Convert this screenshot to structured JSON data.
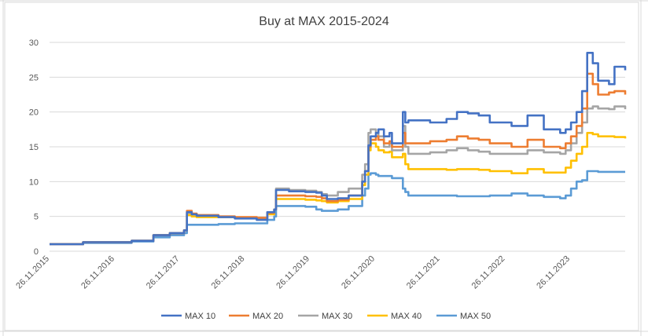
{
  "chart_data": {
    "type": "line",
    "title": "Buy at MAX 2015-2024",
    "xlabel": "",
    "ylabel": "",
    "ylim": [
      0,
      30
    ],
    "yticks": [
      0,
      5,
      10,
      15,
      20,
      25,
      30
    ],
    "x_start": "26.11.2015",
    "x_end": "30.09.2024",
    "xticks": [
      "26.11.2015",
      "26.11.2016",
      "26.11.2017",
      "26.11.2018",
      "26.11.2019",
      "26.11.2020",
      "26.11.2021",
      "26.11.2022",
      "26.11.2023"
    ],
    "grid": "horizontal",
    "legend_position": "bottom",
    "series": [
      {
        "name": "MAX 10",
        "color": "#4472c4",
        "points": [
          [
            "26.11.2015",
            1.0
          ],
          [
            "01.04.2016",
            1.0
          ],
          [
            "01.06.2016",
            1.3
          ],
          [
            "01.03.2017",
            1.5
          ],
          [
            "01.07.2017",
            2.3
          ],
          [
            "01.10.2017",
            2.6
          ],
          [
            "20.12.2017",
            3.0
          ],
          [
            "05.01.2018",
            5.6
          ],
          [
            "01.02.2018",
            5.3
          ],
          [
            "01.03.2018",
            5.1
          ],
          [
            "01.07.2018",
            4.9
          ],
          [
            "01.10.2018",
            4.7
          ],
          [
            "01.02.2019",
            4.5
          ],
          [
            "01.04.2019",
            5.6
          ],
          [
            "10.05.2019",
            6.0
          ],
          [
            "20.05.2019",
            8.8
          ],
          [
            "01.08.2019",
            8.6
          ],
          [
            "01.11.2019",
            8.5
          ],
          [
            "01.01.2020",
            8.4
          ],
          [
            "01.02.2020",
            8.0
          ],
          [
            "01.03.2020",
            7.5
          ],
          [
            "01.05.2020",
            7.6
          ],
          [
            "01.07.2020",
            8.0
          ],
          [
            "15.09.2020",
            10.0
          ],
          [
            "01.10.2020",
            11.5
          ],
          [
            "20.10.2020",
            15.2
          ],
          [
            "01.11.2020",
            16.5
          ],
          [
            "01.12.2020",
            17.0
          ],
          [
            "15.12.2020",
            17.5
          ],
          [
            "15.01.2021",
            16.5
          ],
          [
            "15.02.2021",
            17.0
          ],
          [
            "01.03.2021",
            15.5
          ],
          [
            "01.05.2021",
            20.0
          ],
          [
            "15.05.2021",
            18.5
          ],
          [
            "01.06.2021",
            18.8
          ],
          [
            "01.10.2021",
            18.5
          ],
          [
            "01.01.2022",
            19.0
          ],
          [
            "01.03.2022",
            20.0
          ],
          [
            "01.05.2022",
            19.8
          ],
          [
            "01.07.2022",
            19.5
          ],
          [
            "01.09.2022",
            18.5
          ],
          [
            "01.01.2023",
            18.0
          ],
          [
            "01.04.2023",
            19.5
          ],
          [
            "01.07.2023",
            17.5
          ],
          [
            "01.10.2023",
            17.0
          ],
          [
            "01.11.2023",
            17.5
          ],
          [
            "01.12.2023",
            18.5
          ],
          [
            "01.01.2024",
            20.0
          ],
          [
            "01.02.2024",
            23.0
          ],
          [
            "01.03.2024",
            28.5
          ],
          [
            "01.04.2024",
            27.0
          ],
          [
            "01.05.2024",
            24.5
          ],
          [
            "01.07.2024",
            24.0
          ],
          [
            "01.08.2024",
            26.5
          ],
          [
            "30.09.2024",
            26.0
          ]
        ]
      },
      {
        "name": "MAX 20",
        "color": "#ed7d31",
        "points": [
          [
            "26.11.2015",
            1.0
          ],
          [
            "01.04.2016",
            1.0
          ],
          [
            "01.06.2016",
            1.3
          ],
          [
            "01.03.2017",
            1.5
          ],
          [
            "01.07.2017",
            2.3
          ],
          [
            "01.10.2017",
            2.6
          ],
          [
            "20.12.2017",
            3.0
          ],
          [
            "05.01.2018",
            5.8
          ],
          [
            "01.02.2018",
            5.4
          ],
          [
            "01.03.2018",
            5.2
          ],
          [
            "01.07.2018",
            5.0
          ],
          [
            "01.10.2018",
            4.9
          ],
          [
            "01.02.2019",
            4.8
          ],
          [
            "01.04.2019",
            5.5
          ],
          [
            "10.05.2019",
            6.0
          ],
          [
            "20.05.2019",
            8.0
          ],
          [
            "01.08.2019",
            8.0
          ],
          [
            "01.11.2019",
            7.9
          ],
          [
            "01.01.2020",
            7.8
          ],
          [
            "01.02.2020",
            7.6
          ],
          [
            "01.03.2020",
            7.2
          ],
          [
            "01.05.2020",
            7.4
          ],
          [
            "01.07.2020",
            8.0
          ],
          [
            "15.09.2020",
            10.0
          ],
          [
            "01.10.2020",
            11.5
          ],
          [
            "20.10.2020",
            15.0
          ],
          [
            "01.11.2020",
            16.0
          ],
          [
            "01.12.2020",
            16.5
          ],
          [
            "15.12.2020",
            16.0
          ],
          [
            "15.01.2021",
            15.5
          ],
          [
            "15.02.2021",
            15.8
          ],
          [
            "01.03.2021",
            15.0
          ],
          [
            "01.05.2021",
            17.0
          ],
          [
            "15.05.2021",
            15.5
          ],
          [
            "01.06.2021",
            15.5
          ],
          [
            "01.10.2021",
            15.8
          ],
          [
            "01.01.2022",
            16.0
          ],
          [
            "01.03.2022",
            16.5
          ],
          [
            "01.05.2022",
            16.2
          ],
          [
            "01.07.2022",
            16.0
          ],
          [
            "01.09.2022",
            15.5
          ],
          [
            "01.01.2023",
            15.0
          ],
          [
            "01.04.2023",
            16.0
          ],
          [
            "01.07.2023",
            15.0
          ],
          [
            "01.10.2023",
            14.8
          ],
          [
            "01.11.2023",
            15.5
          ],
          [
            "01.12.2023",
            16.5
          ],
          [
            "01.01.2024",
            18.0
          ],
          [
            "01.02.2024",
            20.5
          ],
          [
            "01.03.2024",
            25.5
          ],
          [
            "01.04.2024",
            24.0
          ],
          [
            "01.05.2024",
            22.5
          ],
          [
            "01.07.2024",
            22.8
          ],
          [
            "01.08.2024",
            23.0
          ],
          [
            "30.09.2024",
            22.5
          ]
        ]
      },
      {
        "name": "MAX 30",
        "color": "#a5a5a5",
        "points": [
          [
            "26.11.2015",
            1.0
          ],
          [
            "01.04.2016",
            1.0
          ],
          [
            "01.06.2016",
            1.3
          ],
          [
            "01.03.2017",
            1.5
          ],
          [
            "01.07.2017",
            2.3
          ],
          [
            "01.10.2017",
            2.6
          ],
          [
            "20.12.2017",
            3.0
          ],
          [
            "05.01.2018",
            5.5
          ],
          [
            "01.02.2018",
            5.3
          ],
          [
            "01.03.2018",
            5.1
          ],
          [
            "01.07.2018",
            5.0
          ],
          [
            "01.10.2018",
            4.8
          ],
          [
            "01.02.2019",
            4.7
          ],
          [
            "01.04.2019",
            5.6
          ],
          [
            "10.05.2019",
            6.0
          ],
          [
            "20.05.2019",
            9.0
          ],
          [
            "01.08.2019",
            8.8
          ],
          [
            "01.11.2019",
            8.7
          ],
          [
            "01.01.2020",
            8.5
          ],
          [
            "01.02.2020",
            8.2
          ],
          [
            "01.03.2020",
            8.0
          ],
          [
            "01.05.2020",
            8.5
          ],
          [
            "01.07.2020",
            9.0
          ],
          [
            "15.09.2020",
            11.0
          ],
          [
            "01.10.2020",
            12.5
          ],
          [
            "20.10.2020",
            17.0
          ],
          [
            "01.11.2020",
            17.5
          ],
          [
            "01.12.2020",
            17.0
          ],
          [
            "15.12.2020",
            16.5
          ],
          [
            "15.01.2021",
            15.0
          ],
          [
            "15.02.2021",
            15.5
          ],
          [
            "01.03.2021",
            14.5
          ],
          [
            "01.05.2021",
            18.0
          ],
          [
            "15.05.2021",
            15.0
          ],
          [
            "01.06.2021",
            14.0
          ],
          [
            "01.10.2021",
            14.2
          ],
          [
            "01.01.2022",
            14.5
          ],
          [
            "01.03.2022",
            14.8
          ],
          [
            "01.05.2022",
            14.5
          ],
          [
            "01.07.2022",
            14.3
          ],
          [
            "01.09.2022",
            14.0
          ],
          [
            "01.01.2023",
            14.0
          ],
          [
            "01.04.2023",
            14.5
          ],
          [
            "01.07.2023",
            14.2
          ],
          [
            "01.10.2023",
            14.0
          ],
          [
            "01.11.2023",
            14.5
          ],
          [
            "01.12.2023",
            15.5
          ],
          [
            "01.01.2024",
            17.0
          ],
          [
            "01.02.2024",
            18.5
          ],
          [
            "01.03.2024",
            20.5
          ],
          [
            "01.04.2024",
            20.8
          ],
          [
            "01.05.2024",
            20.5
          ],
          [
            "01.07.2024",
            20.4
          ],
          [
            "01.08.2024",
            20.8
          ],
          [
            "30.09.2024",
            20.4
          ]
        ]
      },
      {
        "name": "MAX 40",
        "color": "#ffc000",
        "points": [
          [
            "26.11.2015",
            1.0
          ],
          [
            "01.04.2016",
            1.0
          ],
          [
            "01.06.2016",
            1.3
          ],
          [
            "01.03.2017",
            1.5
          ],
          [
            "01.07.2017",
            2.3
          ],
          [
            "01.10.2017",
            2.6
          ],
          [
            "20.12.2017",
            3.0
          ],
          [
            "05.01.2018",
            5.2
          ],
          [
            "01.02.2018",
            5.0
          ],
          [
            "01.03.2018",
            4.9
          ],
          [
            "01.07.2018",
            4.9
          ],
          [
            "01.10.2018",
            4.8
          ],
          [
            "01.02.2019",
            4.7
          ],
          [
            "01.04.2019",
            5.3
          ],
          [
            "10.05.2019",
            6.0
          ],
          [
            "20.05.2019",
            7.5
          ],
          [
            "01.08.2019",
            7.5
          ],
          [
            "01.11.2019",
            7.4
          ],
          [
            "01.01.2020",
            7.3
          ],
          [
            "01.02.2020",
            7.2
          ],
          [
            "01.03.2020",
            7.0
          ],
          [
            "01.05.2020",
            7.2
          ],
          [
            "01.07.2020",
            7.5
          ],
          [
            "15.09.2020",
            9.5
          ],
          [
            "01.10.2020",
            11.0
          ],
          [
            "20.10.2020",
            14.5
          ],
          [
            "01.11.2020",
            15.5
          ],
          [
            "01.12.2020",
            15.0
          ],
          [
            "15.12.2020",
            14.5
          ],
          [
            "15.01.2021",
            14.2
          ],
          [
            "15.02.2021",
            14.3
          ],
          [
            "01.03.2021",
            13.5
          ],
          [
            "01.05.2021",
            14.0
          ],
          [
            "15.05.2021",
            12.5
          ],
          [
            "01.06.2021",
            11.8
          ],
          [
            "01.10.2021",
            11.8
          ],
          [
            "01.01.2022",
            11.7
          ],
          [
            "01.03.2022",
            11.8
          ],
          [
            "01.05.2022",
            11.8
          ],
          [
            "01.07.2022",
            11.7
          ],
          [
            "01.09.2022",
            11.5
          ],
          [
            "01.01.2023",
            11.2
          ],
          [
            "01.04.2023",
            11.8
          ],
          [
            "01.07.2023",
            11.3
          ],
          [
            "01.10.2023",
            11.3
          ],
          [
            "01.11.2023",
            12.0
          ],
          [
            "01.12.2023",
            13.0
          ],
          [
            "01.01.2024",
            14.0
          ],
          [
            "01.02.2024",
            15.0
          ],
          [
            "01.03.2024",
            17.0
          ],
          [
            "01.04.2024",
            16.8
          ],
          [
            "01.05.2024",
            16.5
          ],
          [
            "01.07.2024",
            16.5
          ],
          [
            "01.08.2024",
            16.4
          ],
          [
            "30.09.2024",
            16.2
          ]
        ]
      },
      {
        "name": "MAX 50",
        "color": "#5b9bd5",
        "points": [
          [
            "26.11.2015",
            1.0
          ],
          [
            "01.04.2016",
            1.0
          ],
          [
            "01.06.2016",
            1.2
          ],
          [
            "01.03.2017",
            1.4
          ],
          [
            "01.07.2017",
            2.0
          ],
          [
            "01.10.2017",
            2.3
          ],
          [
            "20.12.2017",
            2.6
          ],
          [
            "05.01.2018",
            3.8
          ],
          [
            "01.02.2018",
            3.8
          ],
          [
            "01.03.2018",
            3.8
          ],
          [
            "01.07.2018",
            3.9
          ],
          [
            "01.10.2018",
            4.0
          ],
          [
            "01.02.2019",
            4.0
          ],
          [
            "01.04.2019",
            4.5
          ],
          [
            "10.05.2019",
            5.0
          ],
          [
            "20.05.2019",
            6.5
          ],
          [
            "01.08.2019",
            6.5
          ],
          [
            "01.11.2019",
            6.4
          ],
          [
            "01.01.2020",
            6.0
          ],
          [
            "01.02.2020",
            5.8
          ],
          [
            "01.03.2020",
            5.8
          ],
          [
            "01.05.2020",
            6.0
          ],
          [
            "01.07.2020",
            6.5
          ],
          [
            "15.09.2020",
            8.0
          ],
          [
            "01.10.2020",
            9.0
          ],
          [
            "20.10.2020",
            11.0
          ],
          [
            "01.11.2020",
            11.2
          ],
          [
            "01.12.2020",
            11.0
          ],
          [
            "15.12.2020",
            10.8
          ],
          [
            "15.01.2021",
            10.8
          ],
          [
            "15.02.2021",
            10.8
          ],
          [
            "01.03.2021",
            10.5
          ],
          [
            "01.05.2021",
            9.0
          ],
          [
            "15.05.2021",
            8.5
          ],
          [
            "01.06.2021",
            8.0
          ],
          [
            "01.10.2021",
            8.0
          ],
          [
            "01.01.2022",
            8.0
          ],
          [
            "01.03.2022",
            7.9
          ],
          [
            "01.05.2022",
            7.9
          ],
          [
            "01.07.2022",
            7.9
          ],
          [
            "01.09.2022",
            8.0
          ],
          [
            "01.01.2023",
            8.3
          ],
          [
            "01.04.2023",
            8.0
          ],
          [
            "01.07.2023",
            7.8
          ],
          [
            "01.10.2023",
            7.6
          ],
          [
            "01.11.2023",
            8.0
          ],
          [
            "01.12.2023",
            9.0
          ],
          [
            "01.01.2024",
            10.0
          ],
          [
            "01.02.2024",
            10.2
          ],
          [
            "01.03.2024",
            11.5
          ],
          [
            "01.04.2024",
            11.5
          ],
          [
            "01.05.2024",
            11.4
          ],
          [
            "01.07.2024",
            11.4
          ],
          [
            "01.08.2024",
            11.4
          ],
          [
            "30.09.2024",
            11.4
          ]
        ]
      }
    ]
  }
}
